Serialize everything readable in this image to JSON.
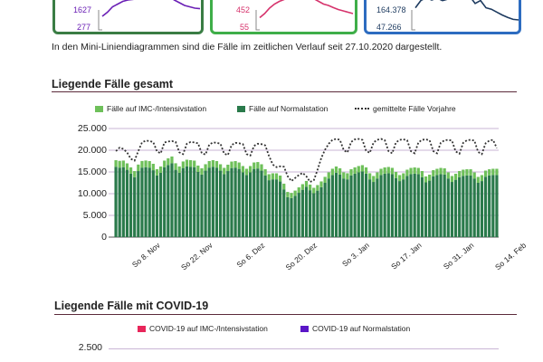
{
  "mini_charts": [
    {
      "label_top": "1627",
      "label_bottom": "277",
      "color": "#6a1fb5",
      "border": "#3a7d44"
    },
    {
      "label_top": "452",
      "label_bottom": "55",
      "color": "#d6336c",
      "border": "#3fae49"
    },
    {
      "label_top": "164.378",
      "label_bottom": "47.266",
      "color": "#1d3a5f",
      "border": "#2d6cc0"
    }
  ],
  "note": "In den Mini-Liniendiagrammen sind die Fälle im zeitlichen Verlauf seit 27.10.2020 dargestellt.",
  "section1": {
    "title": "Liegende Fälle gesamt",
    "legend": [
      {
        "label": "Fälle auf IMC-/Intensivstation",
        "color": "#6ec05a"
      },
      {
        "label": "Fälle auf Normalstation",
        "color": "#2a7a4b"
      },
      {
        "label": "gemittelte Fälle Vorjahre",
        "color": "#333333"
      }
    ]
  },
  "section2": {
    "title": "Liegende Fälle mit COVID-19",
    "legend": [
      {
        "label": "COVID-19 auf IMC-/Intensivstation",
        "color": "#e8265a"
      },
      {
        "label": "COVID-19 auf Normalstation",
        "color": "#5a16c7"
      }
    ],
    "y_tick_visible": "2.500"
  },
  "chart_data": {
    "type": "bar",
    "stacked": true,
    "title": "Liegende Fälle gesamt",
    "ylim": [
      0,
      25000
    ],
    "y_ticks": [
      "0",
      "5.000",
      "10.000",
      "15.000",
      "20.000",
      "25.000"
    ],
    "x_tick_labels": [
      "So 8. Nov",
      "So 22. Nov",
      "So 6. Dez",
      "So 20. Dez",
      "So 3. Jan",
      "So 17. Jan",
      "So 31. Jan",
      "So 14. Feb"
    ],
    "grid": true,
    "legend_position": "top",
    "series": [
      {
        "name": "Fälle auf Normalstation",
        "color": "#2a7a4b",
        "values": [
          16200,
          16000,
          16100,
          15500,
          14600,
          13800,
          15200,
          16000,
          16100,
          16000,
          15400,
          14200,
          14800,
          16100,
          16600,
          17000,
          15500,
          14800,
          15900,
          16300,
          16200,
          16100,
          15000,
          14400,
          15300,
          16000,
          16200,
          16000,
          15300,
          14500,
          15200,
          15900,
          16000,
          15700,
          14900,
          14300,
          14900,
          15700,
          15800,
          15300,
          14200,
          13100,
          13300,
          13300,
          12800,
          11000,
          9200,
          9000,
          9500,
          10200,
          10900,
          11600,
          10800,
          10100,
          10700,
          11500,
          12500,
          13500,
          14300,
          14800,
          14400,
          13500,
          13300,
          14200,
          14600,
          14900,
          15100,
          14600,
          13300,
          12700,
          13500,
          14300,
          14600,
          14700,
          14500,
          13600,
          12900,
          13300,
          14100,
          14500,
          14600,
          14500,
          13800,
          12600,
          13000,
          14000,
          14300,
          14500,
          14400,
          13500,
          12700,
          13200,
          13800,
          14100,
          14200,
          14200,
          13500,
          12500,
          12900,
          13900,
          14200,
          14300,
          14300
        ]
      },
      {
        "name": "Fälle auf IMC-/Intensivstation",
        "color": "#6ec05a",
        "values": [
          1500,
          1550,
          1520,
          1480,
          1450,
          1400,
          1500,
          1520,
          1530,
          1500,
          1480,
          1440,
          1460,
          1510,
          1540,
          1560,
          1500,
          1470,
          1510,
          1520,
          1520,
          1510,
          1470,
          1440,
          1480,
          1500,
          1510,
          1500,
          1470,
          1440,
          1470,
          1490,
          1500,
          1480,
          1460,
          1430,
          1460,
          1480,
          1480,
          1470,
          1430,
          1380,
          1390,
          1390,
          1370,
          1300,
          1200,
          1180,
          1210,
          1250,
          1290,
          1330,
          1290,
          1250,
          1280,
          1320,
          1370,
          1410,
          1440,
          1460,
          1440,
          1410,
          1400,
          1430,
          1450,
          1460,
          1470,
          1450,
          1400,
          1370,
          1400,
          1430,
          1440,
          1450,
          1440,
          1410,
          1380,
          1390,
          1420,
          1430,
          1440,
          1430,
          1410,
          1370,
          1380,
          1410,
          1420,
          1430,
          1430,
          1400,
          1370,
          1390,
          1410,
          1420,
          1420,
          1420,
          1400,
          1360,
          1380,
          1410,
          1420,
          1430,
          1430
        ]
      },
      {
        "name": "gemittelte Fälle Vorjahre",
        "color": "#333333",
        "type": "line",
        "values": [
          19800,
          20600,
          20300,
          19500,
          18000,
          17600,
          19800,
          21800,
          22200,
          22100,
          21900,
          19700,
          19300,
          21800,
          22000,
          22100,
          21900,
          19500,
          19100,
          21500,
          21900,
          21800,
          21600,
          19300,
          19000,
          21300,
          21800,
          21700,
          21500,
          19200,
          18900,
          21200,
          21700,
          21600,
          21400,
          19100,
          18800,
          21000,
          21500,
          21400,
          21100,
          18700,
          16700,
          16100,
          16300,
          16200,
          14000,
          12900,
          13600,
          14300,
          14800,
          14000,
          12700,
          13100,
          15500,
          18200,
          20100,
          21500,
          22400,
          22600,
          22400,
          20000,
          19500,
          21900,
          22500,
          22600,
          22400,
          19900,
          19400,
          21800,
          22400,
          22600,
          22300,
          19800,
          19300,
          21800,
          22400,
          22500,
          22300,
          19800,
          19300,
          21800,
          22400,
          22500,
          22300,
          19800,
          19300,
          21700,
          22300,
          22400,
          22200,
          19700,
          19200,
          21700,
          22300,
          22400,
          22200,
          19600,
          19100,
          21600,
          22200,
          22400,
          20500
        ]
      }
    ]
  }
}
